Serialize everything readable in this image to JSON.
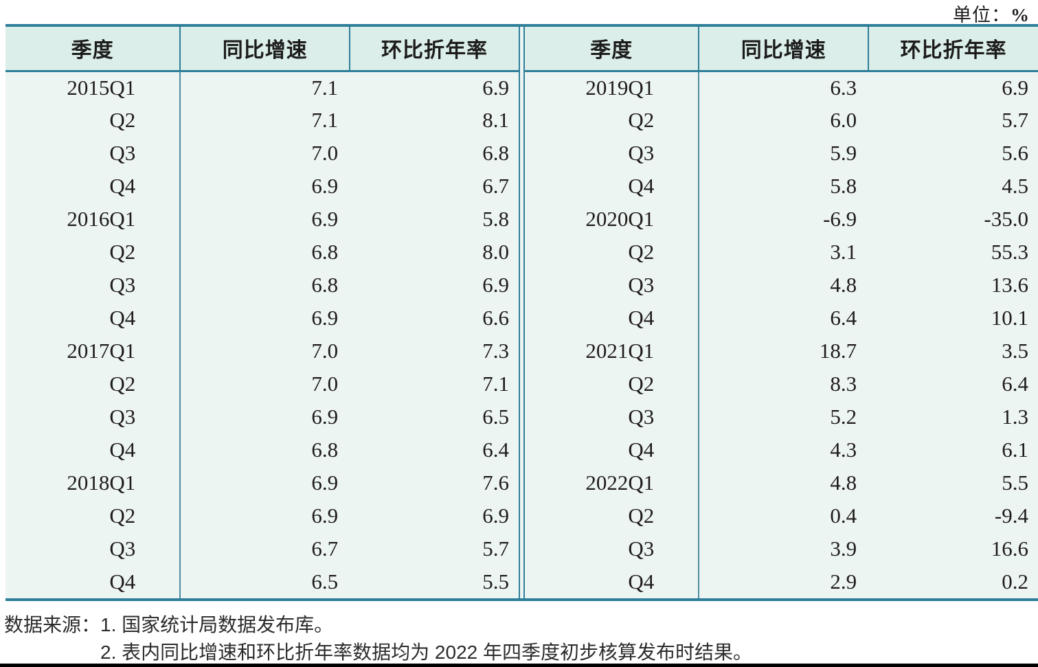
{
  "unit": {
    "prefix": "单位：",
    "value": "%"
  },
  "table": {
    "headers": {
      "quarter": "季度",
      "yoy": "同比增速",
      "qoq": "环比折年率"
    },
    "left_rows": [
      {
        "quarter": "2015Q1",
        "yoy": "7.1",
        "qoq": "6.9"
      },
      {
        "quarter": "Q2",
        "yoy": "7.1",
        "qoq": "8.1"
      },
      {
        "quarter": "Q3",
        "yoy": "7.0",
        "qoq": "6.8"
      },
      {
        "quarter": "Q4",
        "yoy": "6.9",
        "qoq": "6.7"
      },
      {
        "quarter": "2016Q1",
        "yoy": "6.9",
        "qoq": "5.8"
      },
      {
        "quarter": "Q2",
        "yoy": "6.8",
        "qoq": "8.0"
      },
      {
        "quarter": "Q3",
        "yoy": "6.8",
        "qoq": "6.9"
      },
      {
        "quarter": "Q4",
        "yoy": "6.9",
        "qoq": "6.6"
      },
      {
        "quarter": "2017Q1",
        "yoy": "7.0",
        "qoq": "7.3"
      },
      {
        "quarter": "Q2",
        "yoy": "7.0",
        "qoq": "7.1"
      },
      {
        "quarter": "Q3",
        "yoy": "6.9",
        "qoq": "6.5"
      },
      {
        "quarter": "Q4",
        "yoy": "6.8",
        "qoq": "6.4"
      },
      {
        "quarter": "2018Q1",
        "yoy": "6.9",
        "qoq": "7.6"
      },
      {
        "quarter": "Q2",
        "yoy": "6.9",
        "qoq": "6.9"
      },
      {
        "quarter": "Q3",
        "yoy": "6.7",
        "qoq": "5.7"
      },
      {
        "quarter": "Q4",
        "yoy": "6.5",
        "qoq": "5.5"
      }
    ],
    "right_rows": [
      {
        "quarter": "2019Q1",
        "yoy": "6.3",
        "qoq": "6.9"
      },
      {
        "quarter": "Q2",
        "yoy": "6.0",
        "qoq": "5.7"
      },
      {
        "quarter": "Q3",
        "yoy": "5.9",
        "qoq": "5.6"
      },
      {
        "quarter": "Q4",
        "yoy": "5.8",
        "qoq": "4.5"
      },
      {
        "quarter": "2020Q1",
        "yoy": "-6.9",
        "qoq": "-35.0"
      },
      {
        "quarter": "Q2",
        "yoy": "3.1",
        "qoq": "55.3"
      },
      {
        "quarter": "Q3",
        "yoy": "4.8",
        "qoq": "13.6"
      },
      {
        "quarter": "Q4",
        "yoy": "6.4",
        "qoq": "10.1"
      },
      {
        "quarter": "2021Q1",
        "yoy": "18.7",
        "qoq": "3.5"
      },
      {
        "quarter": "Q2",
        "yoy": "8.3",
        "qoq": "6.4"
      },
      {
        "quarter": "Q3",
        "yoy": "5.2",
        "qoq": "1.3"
      },
      {
        "quarter": "Q4",
        "yoy": "4.3",
        "qoq": "6.1"
      },
      {
        "quarter": "2022Q1",
        "yoy": "4.8",
        "qoq": "5.5"
      },
      {
        "quarter": "Q2",
        "yoy": "0.4",
        "qoq": "-9.4"
      },
      {
        "quarter": "Q3",
        "yoy": "3.9",
        "qoq": "16.6"
      },
      {
        "quarter": "Q4",
        "yoy": "2.9",
        "qoq": "0.2"
      }
    ]
  },
  "footnotes": {
    "source_label": "数据来源：",
    "notes": [
      "1. 国家统计局数据发布库。",
      "2. 表内同比增速和环比折年率数据均为 2022 年四季度初步核算发布时结果。"
    ]
  },
  "colors": {
    "frame": "#2e7e99",
    "frame_light": "#4b8ca1",
    "header_bg": "#dceee9",
    "body_bg": "#edf5f3",
    "bottom_bar": "#000000"
  }
}
